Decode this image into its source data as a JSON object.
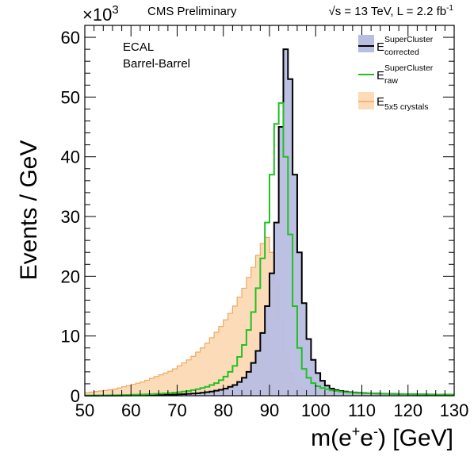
{
  "chart_data": {
    "type": "histogram",
    "header_left": "CMS Preliminary",
    "header_right": {
      "sqrt": "√s",
      "main": " = 13 TeV, L = 2.2 fb",
      "sup": "-1"
    },
    "annotation_lines": [
      "ECAL",
      "Barrel-Barrel"
    ],
    "xlabel": {
      "pre": "m(e",
      "sup1": "+",
      "mid": "e",
      "sup2": "-",
      "post": ") [GeV]"
    },
    "ylabel": "Events / GeV",
    "y_multiplier": {
      "base": "×10",
      "exp": "3"
    },
    "xlim": [
      50,
      130
    ],
    "ylim": [
      0,
      62
    ],
    "x_ticks": [
      50,
      60,
      70,
      80,
      90,
      100,
      110,
      120,
      130
    ],
    "y_ticks": [
      0,
      10,
      20,
      30,
      40,
      50,
      60
    ],
    "bin_width": 1,
    "x_bin_edges_start": 50,
    "series": [
      {
        "key": "e5x5",
        "style": "fill",
        "fill_color": "#fcdcb8",
        "line_color": "#f0a860",
        "legend": {
          "main": "E",
          "sub": "5x5 crystals",
          "sup": ""
        },
        "values": [
          0.5,
          0.6,
          0.7,
          0.8,
          0.9,
          1.0,
          1.1,
          1.3,
          1.5,
          1.7,
          1.9,
          2.1,
          2.3,
          2.6,
          2.9,
          3.2,
          3.5,
          3.8,
          4.1,
          4.5,
          5.0,
          5.5,
          6.0,
          6.6,
          7.3,
          8.0,
          8.8,
          9.7,
          10.6,
          11.6,
          12.7,
          13.8,
          15.0,
          16.5,
          18.0,
          19.8,
          21.5,
          23.5,
          25.5,
          26.5,
          24.0,
          19.0,
          12.5,
          7.0,
          3.8,
          2.2,
          1.4,
          1.0,
          0.8,
          0.65,
          0.55,
          0.45,
          0.4,
          0.35,
          0.3,
          0.27,
          0.25,
          0.22,
          0.2,
          0.18,
          0.17,
          0.16,
          0.15,
          0.14,
          0.13,
          0.12,
          0.11,
          0.11,
          0.1,
          0.1,
          0.1,
          0.09,
          0.09,
          0.09,
          0.08,
          0.08,
          0.08,
          0.08,
          0.07,
          0.07
        ]
      },
      {
        "key": "raw",
        "style": "line",
        "line_color": "#22c022",
        "legend": {
          "main": "E",
          "sub": "raw",
          "sup": "SuperCluster"
        },
        "values": [
          0.05,
          0.05,
          0.06,
          0.06,
          0.07,
          0.08,
          0.09,
          0.1,
          0.12,
          0.14,
          0.16,
          0.18,
          0.2,
          0.23,
          0.26,
          0.3,
          0.35,
          0.4,
          0.45,
          0.52,
          0.6,
          0.7,
          0.8,
          0.95,
          1.1,
          1.3,
          1.5,
          1.8,
          2.1,
          2.6,
          3.2,
          4.0,
          5.0,
          6.5,
          8.5,
          11.0,
          14.0,
          18.0,
          23.0,
          29.0,
          37.0,
          45.5,
          49.0,
          40.0,
          27.0,
          15.0,
          8.0,
          4.5,
          3.0,
          2.1,
          1.6,
          1.3,
          1.1,
          0.9,
          0.8,
          0.7,
          0.6,
          0.55,
          0.5,
          0.45,
          0.42,
          0.4,
          0.38,
          0.35,
          0.33,
          0.31,
          0.3,
          0.28,
          0.27,
          0.26,
          0.25,
          0.24,
          0.23,
          0.22,
          0.21,
          0.2,
          0.2,
          0.19,
          0.18,
          0.18
        ]
      },
      {
        "key": "corrected",
        "style": "fill",
        "fill_color": "#b8bde2",
        "line_color": "#000000",
        "legend": {
          "main": "E",
          "sub": "corrected",
          "sup": "SuperCluster"
        },
        "values": [
          0.02,
          0.02,
          0.02,
          0.03,
          0.03,
          0.03,
          0.04,
          0.04,
          0.05,
          0.05,
          0.06,
          0.07,
          0.08,
          0.09,
          0.1,
          0.11,
          0.13,
          0.15,
          0.17,
          0.2,
          0.23,
          0.27,
          0.31,
          0.36,
          0.42,
          0.5,
          0.6,
          0.7,
          0.85,
          1.0,
          1.2,
          1.5,
          1.8,
          2.3,
          3.0,
          4.0,
          5.5,
          7.5,
          10.5,
          15.0,
          20.5,
          29.0,
          45.0,
          58.0,
          53.0,
          37.0,
          24.0,
          15.5,
          9.5,
          6.0,
          3.8,
          2.5,
          1.7,
          1.2,
          0.95,
          0.8,
          0.7,
          0.6,
          0.55,
          0.5,
          0.45,
          0.42,
          0.4,
          0.38,
          0.35,
          0.33,
          0.31,
          0.3,
          0.28,
          0.27,
          0.26,
          0.25,
          0.24,
          0.23,
          0.22,
          0.21,
          0.2,
          0.2,
          0.19,
          0.18
        ]
      }
    ],
    "legend_order": [
      "corrected",
      "raw",
      "e5x5"
    ],
    "grid": false,
    "legend_position": "top-right"
  }
}
